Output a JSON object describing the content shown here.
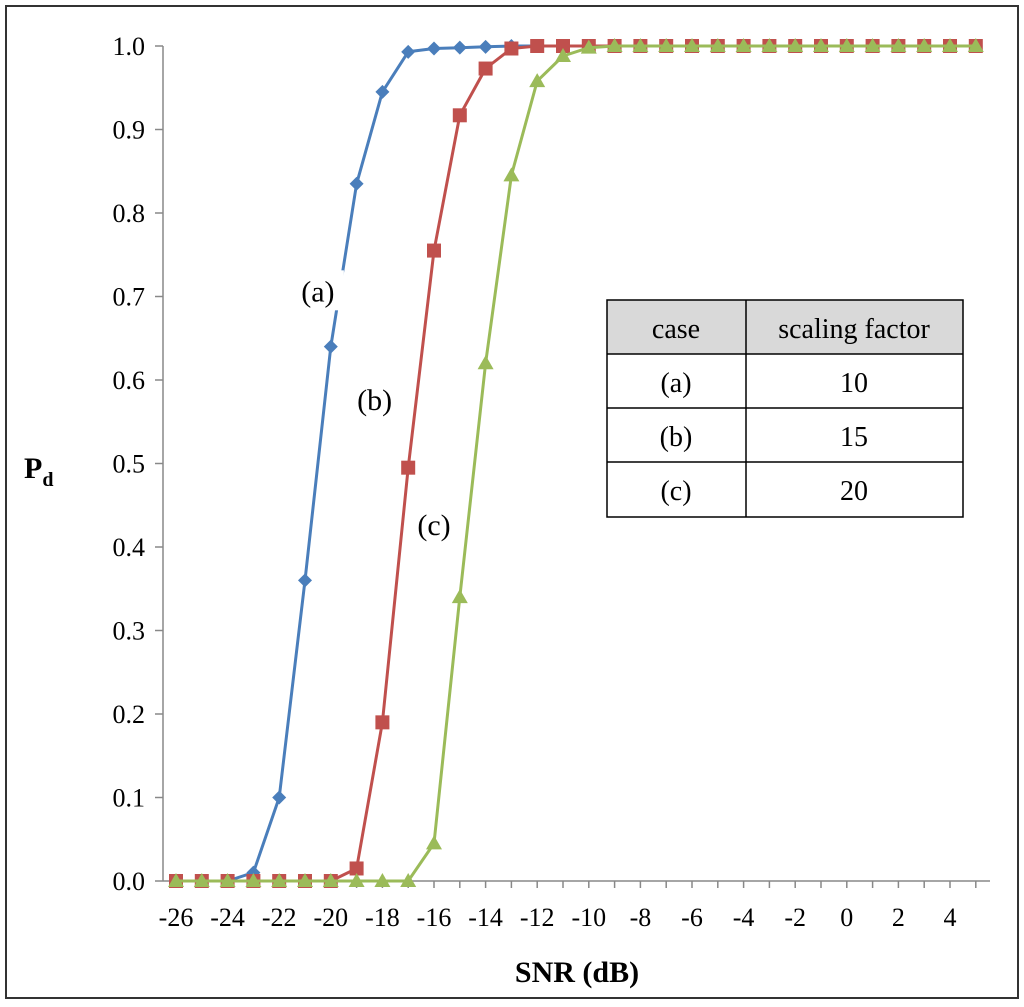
{
  "chart_data": {
    "type": "line",
    "title": "",
    "xlabel": "SNR (dB)",
    "ylabel": {
      "main": "P",
      "sub": "d"
    },
    "xlim": [
      -26,
      5.5
    ],
    "ylim": [
      0,
      1
    ],
    "x_ticks": [
      "-26",
      "-24",
      "-22",
      "-20",
      "-18",
      "-16",
      "-14",
      "-12",
      "-10",
      "-8",
      "-6",
      "-4",
      "-2",
      "0",
      "2",
      "4"
    ],
    "y_ticks": [
      "0.0",
      "0.1",
      "0.2",
      "0.3",
      "0.4",
      "0.5",
      "0.6",
      "0.7",
      "0.8",
      "0.9",
      "1.0"
    ],
    "grid": false,
    "x": [
      -26,
      -25,
      -24,
      -23,
      -22,
      -21,
      -20,
      -19,
      -18,
      -17,
      -16,
      -15,
      -14,
      -13,
      -12,
      -11,
      -10,
      -9,
      -8,
      -7,
      -6,
      -5,
      -4,
      -3,
      -2,
      -1,
      0,
      1,
      2,
      3,
      4,
      5
    ],
    "series": [
      {
        "name": "(a)",
        "color": "#4a7ebb",
        "marker": "diamond",
        "values": [
          0,
          0,
          0,
          0.01,
          0.1,
          0.36,
          0.64,
          0.835,
          0.945,
          0.993,
          0.997,
          0.998,
          0.999,
          1,
          1,
          1,
          1,
          1,
          1,
          1,
          1,
          1,
          1,
          1,
          1,
          1,
          1,
          1,
          1,
          1,
          1,
          1
        ]
      },
      {
        "name": "(b)",
        "color": "#c0504d",
        "marker": "square",
        "values": [
          0,
          0,
          0,
          0,
          0,
          0,
          0,
          0.015,
          0.19,
          0.495,
          0.755,
          0.917,
          0.973,
          0.997,
          1,
          1,
          1,
          1,
          1,
          1,
          1,
          1,
          1,
          1,
          1,
          1,
          1,
          1,
          1,
          1,
          1,
          1
        ]
      },
      {
        "name": "(c)",
        "color": "#9bbb59",
        "marker": "triangle",
        "values": [
          0,
          0,
          0,
          0,
          0,
          0,
          0,
          0,
          0,
          0,
          0.045,
          0.34,
          0.62,
          0.845,
          0.958,
          0.988,
          0.998,
          1,
          1,
          1,
          1,
          1,
          1,
          1,
          1,
          1,
          1,
          1,
          1,
          1,
          1,
          1
        ]
      }
    ],
    "annotations": [
      {
        "text": "(a)",
        "x": -20.5,
        "y": 0.705
      },
      {
        "text": "(b)",
        "x": -18.3,
        "y": 0.575
      },
      {
        "text": "(c)",
        "x": -16.0,
        "y": 0.425
      }
    ],
    "table": {
      "headers": [
        "case",
        "scaling factor"
      ],
      "rows": [
        [
          "(a)",
          "10"
        ],
        [
          "(b)",
          "15"
        ],
        [
          "(c)",
          "20"
        ]
      ]
    }
  }
}
